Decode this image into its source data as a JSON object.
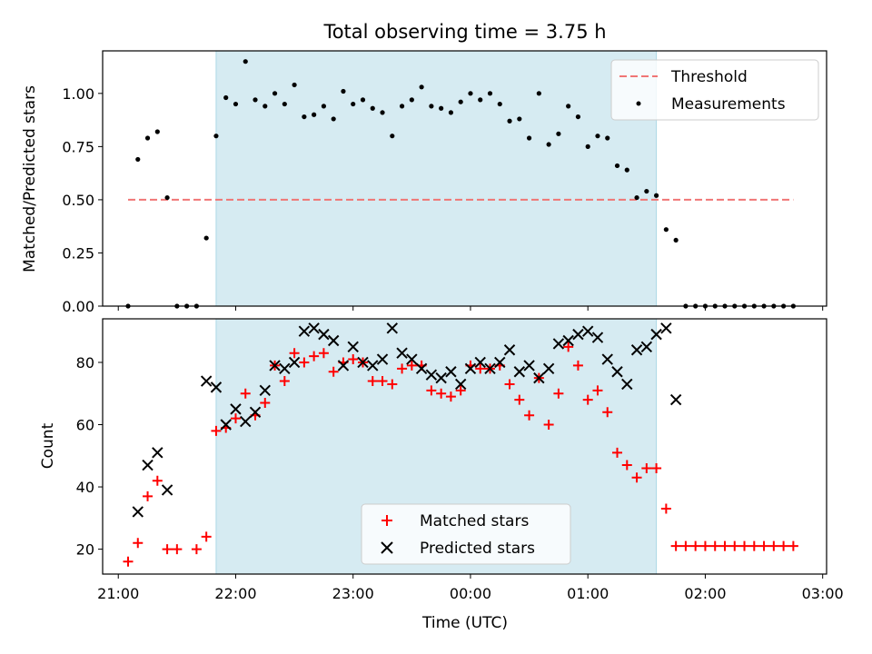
{
  "chart_data": {
    "type": "scatter",
    "title": "Total observing time = 3.75 h",
    "x_unit": "time (UTC)",
    "xlabel": "Time (UTC)",
    "x_ticks": [
      "21:00",
      "22:00",
      "23:00",
      "00:00",
      "01:00",
      "02:00",
      "03:00"
    ],
    "x_range": [
      "20:52",
      "03:02 (next day)"
    ],
    "observing_window": {
      "start": "21:50",
      "end": "01:35"
    },
    "x": [
      "21:05",
      "21:10",
      "21:15",
      "21:20",
      "21:25",
      "21:30",
      "21:35",
      "21:40",
      "21:45",
      "21:50",
      "21:55",
      "22:00",
      "22:05",
      "22:10",
      "22:15",
      "22:20",
      "22:25",
      "22:30",
      "22:35",
      "22:40",
      "22:45",
      "22:50",
      "22:55",
      "23:00",
      "23:05",
      "23:10",
      "23:15",
      "23:20",
      "23:25",
      "23:30",
      "23:35",
      "23:40",
      "23:45",
      "23:50",
      "23:55",
      "00:00",
      "00:05",
      "00:10",
      "00:15",
      "00:20",
      "00:25",
      "00:30",
      "00:35",
      "00:40",
      "00:45",
      "00:50",
      "00:55",
      "01:00",
      "01:05",
      "01:10",
      "01:15",
      "01:20",
      "01:25",
      "01:30",
      "01:35",
      "01:40",
      "01:45",
      "01:50",
      "01:55",
      "02:00",
      "02:05",
      "02:10",
      "02:15",
      "02:20",
      "02:25",
      "02:30",
      "02:35",
      "02:40",
      "02:45"
    ],
    "charts": [
      {
        "ylabel": "Matched/Predicted stars",
        "ylim": [
          0,
          1.2
        ],
        "y_ticks": [
          "0.00",
          "0.25",
          "0.50",
          "0.75",
          "1.00"
        ],
        "legend_position": "top-right",
        "threshold": {
          "name": "Threshold",
          "value": 0.5,
          "from": "21:05",
          "to": "02:45",
          "color": "#f07575"
        },
        "series": [
          {
            "name": "Measurements",
            "marker": "dot",
            "color": "#000000",
            "values": [
              0,
              0.69,
              0.79,
              0.82,
              0.51,
              0,
              0,
              0,
              0.32,
              0.8,
              0.98,
              0.95,
              1.15,
              0.97,
              0.94,
              1.0,
              0.95,
              1.04,
              0.89,
              0.9,
              0.94,
              0.88,
              1.01,
              0.95,
              0.97,
              0.93,
              0.91,
              0.8,
              0.94,
              0.97,
              1.03,
              0.94,
              0.93,
              0.91,
              0.96,
              1.0,
              0.97,
              1.0,
              0.95,
              0.87,
              0.88,
              0.79,
              1.0,
              0.76,
              0.81,
              0.94,
              0.89,
              0.75,
              0.8,
              0.79,
              0.66,
              0.64,
              0.51,
              0.54,
              0.52,
              0.36,
              0.31,
              0,
              0,
              0,
              0,
              0,
              0,
              0,
              0,
              0,
              0,
              0,
              0
            ]
          }
        ]
      },
      {
        "ylabel": "Count",
        "ylim": [
          12,
          94
        ],
        "y_ticks": [
          "20",
          "40",
          "60",
          "80"
        ],
        "legend_position": "bottom-center",
        "series": [
          {
            "name": "Matched stars",
            "marker": "plus",
            "color": "#ff0000",
            "values": [
              16,
              22,
              37,
              42,
              20,
              20,
              null,
              20,
              24,
              58,
              59,
              62,
              70,
              63,
              67,
              79,
              74,
              83,
              80,
              82,
              83,
              77,
              80,
              81,
              80,
              74,
              74,
              73,
              78,
              79,
              79,
              71,
              70,
              69,
              71,
              79,
              78,
              78,
              79,
              73,
              68,
              63,
              75,
              60,
              70,
              85,
              79,
              68,
              71,
              64,
              51,
              47,
              43,
              46,
              46,
              33,
              21,
              21,
              21,
              21,
              21,
              21,
              21,
              21,
              21,
              21,
              21,
              21,
              21
            ]
          },
          {
            "name": "Predicted stars",
            "marker": "x",
            "color": "#000000",
            "values": [
              null,
              32,
              47,
              51,
              39,
              null,
              null,
              null,
              74,
              72,
              60,
              65,
              61,
              64,
              71,
              79,
              78,
              80,
              90,
              91,
              89,
              87,
              79,
              85,
              80,
              79,
              81,
              91,
              83,
              81,
              78,
              76,
              75,
              77,
              73,
              78,
              80,
              78,
              80,
              84,
              77,
              79,
              75,
              78,
              86,
              87,
              89,
              90,
              88,
              81,
              77,
              73,
              84,
              85,
              89,
              91,
              68,
              null,
              null,
              null,
              null,
              null,
              null,
              null,
              null,
              null,
              null,
              null,
              null
            ]
          }
        ]
      }
    ]
  }
}
